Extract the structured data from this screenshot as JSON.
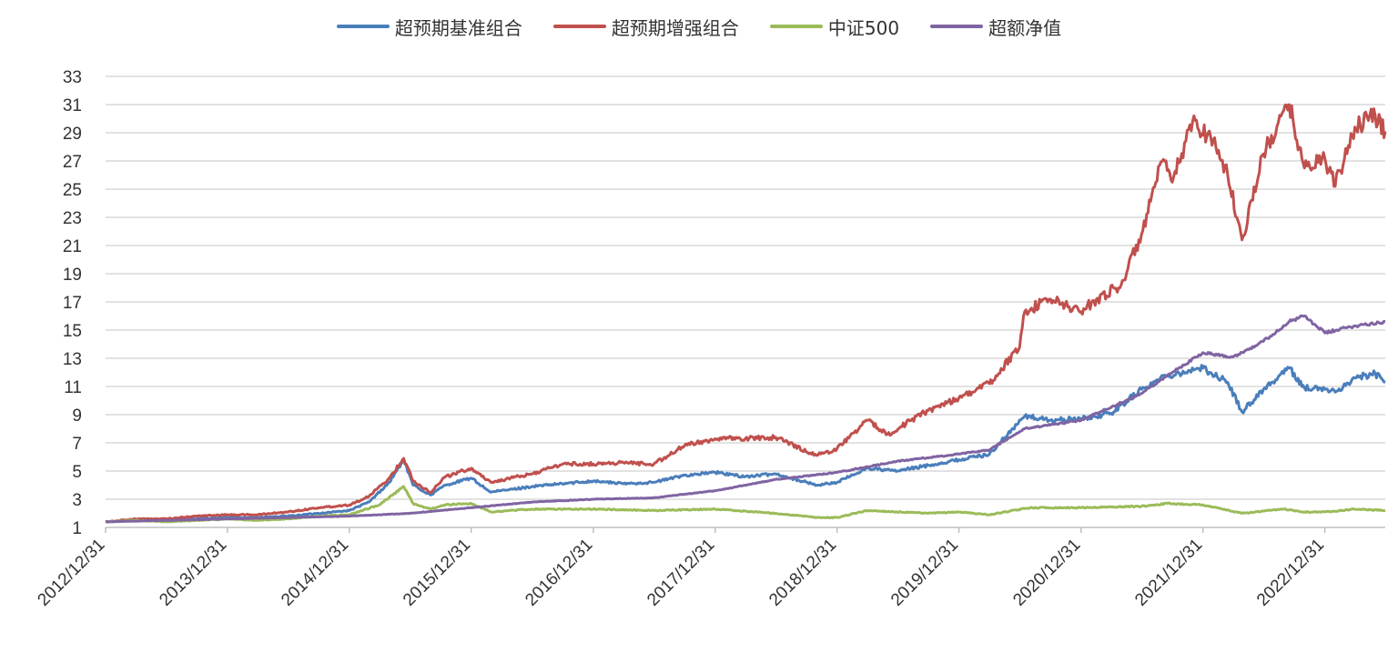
{
  "chart_data": {
    "type": "line",
    "legend_position": "top-center",
    "grid": true,
    "xlim": [
      "2012-12-31",
      "2023-06-30"
    ],
    "ylim": [
      1,
      33
    ],
    "y_ticks": [
      "1",
      "3",
      "5",
      "7",
      "9",
      "11",
      "13",
      "15",
      "17",
      "19",
      "21",
      "23",
      "25",
      "27",
      "29",
      "31",
      "33"
    ],
    "x_ticks": [
      "2012/12/31",
      "2013/12/31",
      "2014/12/31",
      "2015/12/31",
      "2016/12/31",
      "2017/12/31",
      "2018/12/31",
      "2019/12/31",
      "2020/12/31",
      "2021/12/31",
      "2022/12/31"
    ],
    "series": [
      {
        "name": "超预期基准组合",
        "color": "#4a7ebb",
        "points": [
          [
            "2012-12-31",
            1.4
          ],
          [
            "2013-03-31",
            1.5
          ],
          [
            "2013-06-30",
            1.5
          ],
          [
            "2013-09-30",
            1.6
          ],
          [
            "2013-12-31",
            1.7
          ],
          [
            "2014-03-31",
            1.7
          ],
          [
            "2014-06-30",
            1.8
          ],
          [
            "2014-09-30",
            2.0
          ],
          [
            "2014-12-31",
            2.2
          ],
          [
            "2015-02-28",
            2.8
          ],
          [
            "2015-04-30",
            4.2
          ],
          [
            "2015-06-12",
            5.8
          ],
          [
            "2015-07-10",
            4.0
          ],
          [
            "2015-08-31",
            3.3
          ],
          [
            "2015-10-15",
            4.0
          ],
          [
            "2015-12-31",
            4.5
          ],
          [
            "2016-02-28",
            3.5
          ],
          [
            "2016-06-30",
            3.9
          ],
          [
            "2016-12-31",
            4.3
          ],
          [
            "2017-03-31",
            4.1
          ],
          [
            "2017-06-30",
            4.2
          ],
          [
            "2017-09-30",
            4.7
          ],
          [
            "2017-12-31",
            4.9
          ],
          [
            "2018-03-31",
            4.6
          ],
          [
            "2018-06-30",
            4.8
          ],
          [
            "2018-10-31",
            4.0
          ],
          [
            "2018-12-31",
            4.2
          ],
          [
            "2019-03-31",
            5.2
          ],
          [
            "2019-06-30",
            5.0
          ],
          [
            "2019-09-30",
            5.4
          ],
          [
            "2019-12-31",
            5.8
          ],
          [
            "2020-03-31",
            6.2
          ],
          [
            "2020-07-15",
            8.9
          ],
          [
            "2020-09-30",
            8.6
          ],
          [
            "2020-12-31",
            8.7
          ],
          [
            "2021-03-31",
            9.1
          ],
          [
            "2021-06-30",
            10.8
          ],
          [
            "2021-09-15",
            11.8
          ],
          [
            "2021-12-31",
            12.3
          ],
          [
            "2022-03-15",
            11.3
          ],
          [
            "2022-04-27",
            9.2
          ],
          [
            "2022-06-30",
            10.8
          ],
          [
            "2022-09-15",
            12.3
          ],
          [
            "2022-10-31",
            10.9
          ],
          [
            "2022-12-31",
            10.8
          ],
          [
            "2023-01-31",
            10.6
          ],
          [
            "2023-03-31",
            11.6
          ],
          [
            "2023-05-31",
            11.9
          ],
          [
            "2023-06-30",
            11.3
          ]
        ]
      },
      {
        "name": "超预期增强组合",
        "color": "#c0504d",
        "points": [
          [
            "2012-12-31",
            1.4
          ],
          [
            "2013-03-31",
            1.6
          ],
          [
            "2013-06-30",
            1.6
          ],
          [
            "2013-09-30",
            1.8
          ],
          [
            "2013-12-31",
            1.9
          ],
          [
            "2014-03-31",
            1.9
          ],
          [
            "2014-06-30",
            2.1
          ],
          [
            "2014-09-30",
            2.4
          ],
          [
            "2014-12-31",
            2.6
          ],
          [
            "2015-02-28",
            3.2
          ],
          [
            "2015-04-30",
            4.5
          ],
          [
            "2015-06-12",
            5.9
          ],
          [
            "2015-07-10",
            4.3
          ],
          [
            "2015-08-31",
            3.5
          ],
          [
            "2015-10-15",
            4.6
          ],
          [
            "2015-12-31",
            5.2
          ],
          [
            "2016-02-28",
            4.2
          ],
          [
            "2016-06-30",
            4.8
          ],
          [
            "2016-09-30",
            5.5
          ],
          [
            "2016-12-31",
            5.5
          ],
          [
            "2017-03-31",
            5.6
          ],
          [
            "2017-06-30",
            5.5
          ],
          [
            "2017-09-30",
            6.8
          ],
          [
            "2017-12-31",
            7.3
          ],
          [
            "2018-03-31",
            7.3
          ],
          [
            "2018-06-30",
            7.4
          ],
          [
            "2018-10-31",
            6.1
          ],
          [
            "2018-12-31",
            6.6
          ],
          [
            "2019-03-31",
            8.6
          ],
          [
            "2019-05-31",
            7.6
          ],
          [
            "2019-09-30",
            9.3
          ],
          [
            "2019-12-31",
            10.2
          ],
          [
            "2020-03-31",
            11.2
          ],
          [
            "2020-06-30",
            13.8
          ],
          [
            "2020-07-15",
            16.3
          ],
          [
            "2020-09-30",
            17.2
          ],
          [
            "2020-12-31",
            16.3
          ],
          [
            "2021-02-15",
            17.2
          ],
          [
            "2021-04-30",
            18.2
          ],
          [
            "2021-06-30",
            21.8
          ],
          [
            "2021-08-31",
            27.0
          ],
          [
            "2021-09-30",
            25.5
          ],
          [
            "2021-11-30",
            29.8
          ],
          [
            "2022-01-31",
            28.5
          ],
          [
            "2022-03-15",
            26.0
          ],
          [
            "2022-04-27",
            21.4
          ],
          [
            "2022-06-30",
            27.5
          ],
          [
            "2022-09-15",
            31.0
          ],
          [
            "2022-10-31",
            26.5
          ],
          [
            "2022-12-31",
            27.2
          ],
          [
            "2023-01-31",
            25.2
          ],
          [
            "2023-03-31",
            29.4
          ],
          [
            "2023-05-31",
            30.2
          ],
          [
            "2023-06-30",
            29.1
          ]
        ]
      },
      {
        "name": "中证500",
        "color": "#9bbb59",
        "points": [
          [
            "2012-12-31",
            1.4
          ],
          [
            "2013-03-31",
            1.5
          ],
          [
            "2013-06-30",
            1.4
          ],
          [
            "2013-09-30",
            1.5
          ],
          [
            "2013-12-31",
            1.6
          ],
          [
            "2014-03-31",
            1.5
          ],
          [
            "2014-06-30",
            1.6
          ],
          [
            "2014-09-30",
            1.8
          ],
          [
            "2014-12-31",
            1.9
          ],
          [
            "2015-03-31",
            2.6
          ],
          [
            "2015-06-12",
            3.9
          ],
          [
            "2015-07-10",
            2.7
          ],
          [
            "2015-08-31",
            2.3
          ],
          [
            "2015-10-15",
            2.6
          ],
          [
            "2015-12-31",
            2.7
          ],
          [
            "2016-02-28",
            2.1
          ],
          [
            "2016-06-30",
            2.3
          ],
          [
            "2016-12-31",
            2.3
          ],
          [
            "2017-06-30",
            2.2
          ],
          [
            "2017-12-31",
            2.3
          ],
          [
            "2018-06-30",
            2.0
          ],
          [
            "2018-10-31",
            1.7
          ],
          [
            "2018-12-31",
            1.7
          ],
          [
            "2019-03-31",
            2.2
          ],
          [
            "2019-09-30",
            2.0
          ],
          [
            "2019-12-31",
            2.1
          ],
          [
            "2020-03-31",
            1.9
          ],
          [
            "2020-07-31",
            2.4
          ],
          [
            "2020-12-31",
            2.4
          ],
          [
            "2021-06-30",
            2.5
          ],
          [
            "2021-09-15",
            2.7
          ],
          [
            "2021-12-31",
            2.6
          ],
          [
            "2022-04-27",
            2.0
          ],
          [
            "2022-08-31",
            2.3
          ],
          [
            "2022-10-31",
            2.1
          ],
          [
            "2022-12-31",
            2.1
          ],
          [
            "2023-03-31",
            2.3
          ],
          [
            "2023-06-30",
            2.2
          ]
        ]
      },
      {
        "name": "超额净值",
        "color": "#8064a2",
        "points": [
          [
            "2012-12-31",
            1.4
          ],
          [
            "2013-06-30",
            1.5
          ],
          [
            "2013-12-31",
            1.6
          ],
          [
            "2014-06-30",
            1.7
          ],
          [
            "2014-12-31",
            1.8
          ],
          [
            "2015-06-30",
            2.0
          ],
          [
            "2015-12-31",
            2.4
          ],
          [
            "2016-06-30",
            2.8
          ],
          [
            "2016-12-31",
            3.0
          ],
          [
            "2017-06-30",
            3.1
          ],
          [
            "2017-12-31",
            3.6
          ],
          [
            "2018-06-30",
            4.4
          ],
          [
            "2018-12-31",
            4.9
          ],
          [
            "2019-06-30",
            5.7
          ],
          [
            "2019-12-31",
            6.2
          ],
          [
            "2020-03-31",
            6.5
          ],
          [
            "2020-07-15",
            8.0
          ],
          [
            "2020-12-31",
            8.6
          ],
          [
            "2021-06-30",
            10.5
          ],
          [
            "2021-09-30",
            12.0
          ],
          [
            "2021-12-31",
            13.4
          ],
          [
            "2022-03-31",
            13.1
          ],
          [
            "2022-06-30",
            14.2
          ],
          [
            "2022-09-15",
            15.6
          ],
          [
            "2022-10-31",
            16.0
          ],
          [
            "2022-12-31",
            14.8
          ],
          [
            "2023-03-31",
            15.3
          ],
          [
            "2023-06-30",
            15.6
          ]
        ]
      }
    ]
  }
}
